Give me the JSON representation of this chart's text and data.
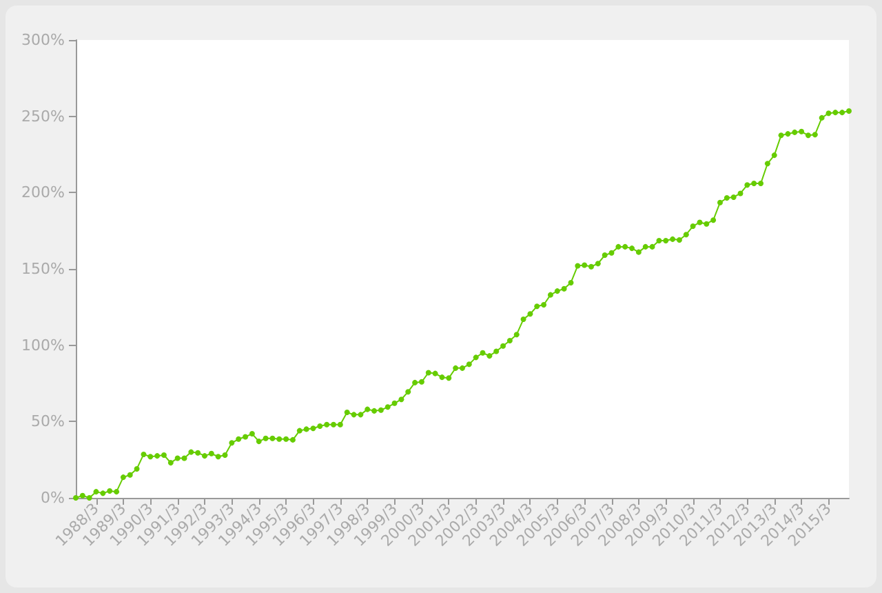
{
  "chart_data": {
    "type": "line",
    "categories": [
      null,
      null,
      null,
      "1988/3",
      null,
      null,
      null,
      "1989/3",
      null,
      null,
      null,
      "1990/3",
      null,
      null,
      null,
      "1991/3",
      null,
      null,
      null,
      "1992/3",
      null,
      null,
      null,
      "1993/3",
      null,
      null,
      null,
      "1994/3",
      null,
      null,
      null,
      "1995/3",
      null,
      null,
      null,
      "1996/3",
      null,
      null,
      null,
      "1997/3",
      null,
      null,
      null,
      "1998/3",
      null,
      null,
      null,
      "1999/3",
      null,
      null,
      null,
      "2000/3",
      null,
      null,
      null,
      "2001/3",
      null,
      null,
      null,
      "2002/3",
      null,
      null,
      null,
      "2003/3",
      null,
      null,
      null,
      "2004/3",
      null,
      null,
      null,
      "2005/3",
      null,
      null,
      null,
      "2006/3",
      null,
      null,
      null,
      "2007/3",
      null,
      null,
      null,
      "2008/3",
      null,
      null,
      null,
      "2009/3",
      null,
      null,
      null,
      "2010/3",
      null,
      null,
      null,
      "2011/3",
      null,
      null,
      null,
      "2012/3",
      null,
      null,
      null,
      "2013/3",
      null,
      null,
      null,
      "2014/3",
      null,
      null,
      null,
      "2015/3",
      null,
      null,
      null
    ],
    "series": [
      {
        "color": "#66cc00",
        "values": [
          0,
          1.5,
          0,
          4,
          3,
          4.5,
          4,
          13.5,
          15,
          19,
          28.5,
          27,
          27.5,
          28,
          23,
          26,
          26,
          30,
          29.5,
          27.5,
          29,
          27,
          28,
          36,
          38.5,
          40,
          42,
          37,
          39,
          39,
          38.5,
          38.5,
          38,
          44,
          45,
          45.5,
          47,
          48,
          48,
          48,
          56,
          54.5,
          54.5,
          58,
          57,
          57.5,
          59.5,
          62,
          64.5,
          69.5,
          75.5,
          76,
          82,
          81.5,
          79,
          78.5,
          85,
          85,
          87.5,
          92,
          95,
          93,
          96,
          99.5,
          103,
          107,
          117,
          120.5,
          125.5,
          126.5,
          133,
          135.5,
          137,
          141,
          152,
          152.5,
          151.5,
          153.5,
          159,
          160.5,
          164.5,
          164.5,
          163.5,
          161,
          164.5,
          164.5,
          168.5,
          168.5,
          169.5,
          169,
          172.5,
          178,
          180.5,
          179.5,
          182,
          193.5,
          196.5,
          197,
          199.5,
          205,
          206,
          206,
          219,
          224.5,
          237.5,
          238.5,
          239.5,
          240,
          237.5,
          238,
          249,
          252,
          252.5,
          252.5,
          253.5
        ]
      }
    ],
    "ylim": [
      0,
      300
    ],
    "yticks": [
      {
        "value": 0,
        "label": "0%"
      },
      {
        "value": 50,
        "label": "50%"
      },
      {
        "value": 100,
        "label": "100%"
      },
      {
        "value": 150,
        "label": "150%"
      },
      {
        "value": 200,
        "label": "200%"
      },
      {
        "value": 250,
        "label": "250%"
      },
      {
        "value": 300,
        "label": "300%"
      }
    ],
    "grid": false,
    "marker": "circle",
    "line_style": "solid"
  }
}
